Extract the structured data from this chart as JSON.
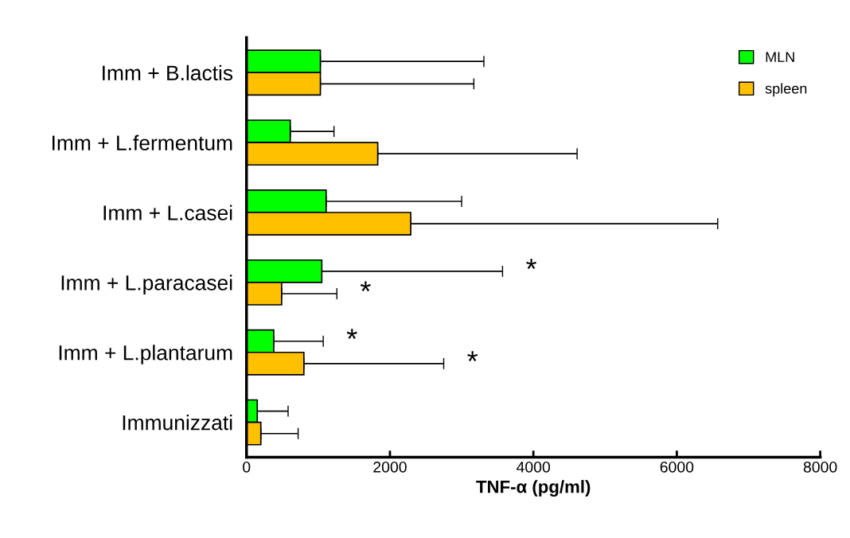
{
  "chart_data": {
    "type": "bar",
    "orientation": "horizontal",
    "xlabel": "TNF-α (pg/ml)",
    "categories": [
      "Imm + B.lactis",
      "Imm + L.fermentum",
      "Imm + L.casei",
      "Imm + L.paracasei",
      "Imm + L.plantarum",
      "Immunizzati"
    ],
    "series": [
      {
        "name": "MLN",
        "color": "#00ff00",
        "values": [
          1030,
          610,
          1110,
          1050,
          380,
          150
        ],
        "errors": [
          [
            1030,
            3310
          ],
          [
            610,
            1220
          ],
          [
            1110,
            3000
          ],
          [
            1050,
            3570
          ],
          [
            380,
            1070
          ],
          [
            150,
            580
          ]
        ]
      },
      {
        "name": "spleen",
        "color": "#ffc000",
        "values": [
          1030,
          1830,
          2290,
          490,
          800,
          200
        ],
        "errors": [
          [
            1030,
            3170
          ],
          [
            1830,
            4610
          ],
          [
            2290,
            6570
          ],
          [
            490,
            1260
          ],
          [
            800,
            2750
          ],
          [
            200,
            720
          ]
        ]
      }
    ],
    "annotations": [
      "*",
      "*",
      "*",
      "*"
    ],
    "xlim": [
      0,
      8000
    ],
    "xticks": [
      0,
      2000,
      4000,
      6000,
      8000
    ],
    "grid": false,
    "legend": "top right"
  }
}
